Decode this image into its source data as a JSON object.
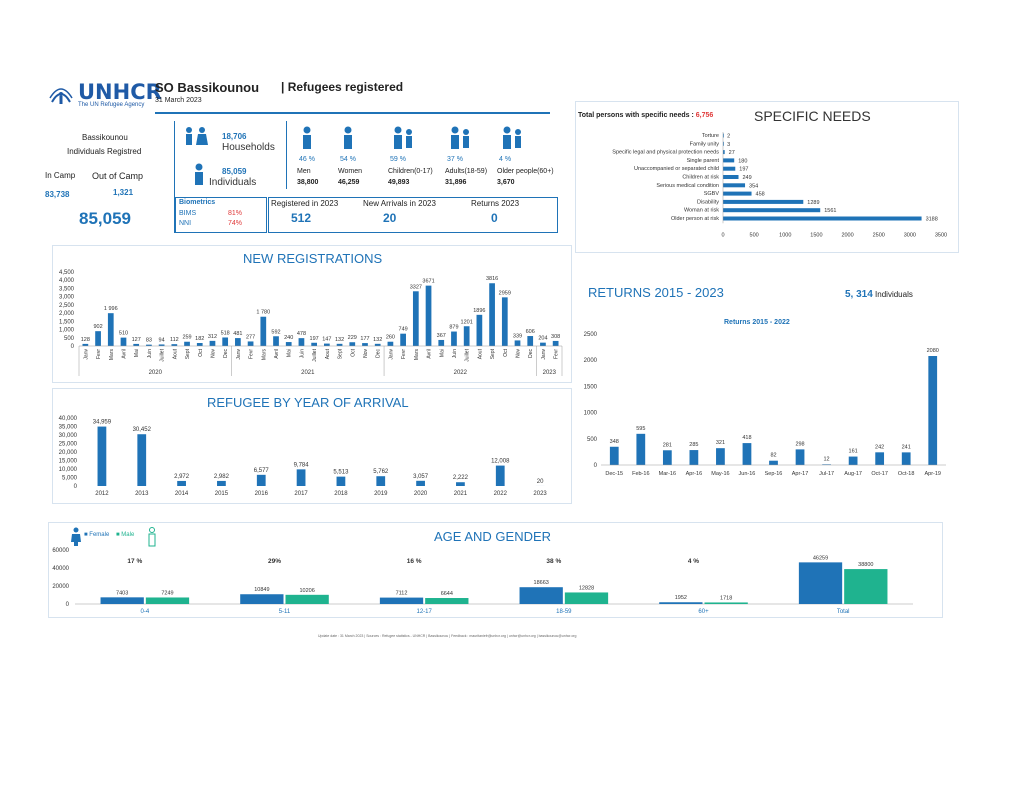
{
  "brand": {
    "name": "UNHCR",
    "tagline": "The UN Refugee Agency"
  },
  "header": {
    "title": "SO Bassikounou",
    "subtitle": "| Refugees registered",
    "date": "31 March 2023"
  },
  "summary": {
    "label1": "Bassikounou",
    "label2": "Individuals Registred",
    "in_camp_label": "In Camp",
    "out_camp_label": "Out of Camp",
    "in_camp_value": "83,738",
    "out_camp_value": "1,321",
    "total": "85,059",
    "households_value": "18,706",
    "households_label": "Households",
    "individuals_value": "85,059",
    "individuals_label": "Individuals"
  },
  "demographics": [
    {
      "pct": "46 %",
      "label": "Men",
      "value": "38,800"
    },
    {
      "pct": "54 %",
      "label": "Women",
      "value": "46,259"
    },
    {
      "pct": "59 %",
      "label": "Children(0-17)",
      "value": "49,893"
    },
    {
      "pct": "37 %",
      "label": "Adults(18-59)",
      "value": "31,896"
    },
    {
      "pct": "4 %",
      "label": "Older people(60+)",
      "value": "3,670"
    }
  ],
  "biometrics": {
    "title": "Biometrics",
    "rows": [
      {
        "label": "BIMS",
        "value": "81%"
      },
      {
        "label": "NNI",
        "value": "74%"
      }
    ]
  },
  "stats": [
    {
      "label": "Registered in 2023",
      "value": "512"
    },
    {
      "label": "New Arrivals in 2023",
      "value": "20"
    },
    {
      "label": "Returns 2023",
      "value": "0"
    }
  ],
  "specific_needs_header": {
    "label": "Total persons with specific needs :",
    "value": "6,756",
    "title": "SPECIFIC NEEDS"
  },
  "returns_header": {
    "title": "RETURNS 2015 - 2023",
    "value": "5, 314",
    "unit": "Individuals"
  },
  "age_gender_header": {
    "title": "AGE AND GENDER",
    "female": "Female",
    "male": "Male"
  },
  "footer": {
    "text": "Update date : 31 March 2023 | Sources : Refugee statistics - UNHCR | Bassikounou | Feedback : mauritaniefr@unhcr.org | unhcr@unhcr.org | bassikounou@unhcr.org"
  },
  "colors": {
    "blue": "#1f73b7",
    "teal": "#1fb38f",
    "red": "#e03a3a"
  },
  "chart_data": [
    {
      "type": "bar",
      "title": "NEW REGISTRATIONS",
      "categories": [
        "Janv",
        "Fevr",
        "Mars",
        "Avril",
        "Mai",
        "Juin",
        "Juillet",
        "Aout",
        "Sept",
        "Oct",
        "Nov",
        "Dec",
        "Janv",
        "Fevr",
        "Mars",
        "Avril",
        "Mai",
        "Juin",
        "Juillet",
        "Aout",
        "Sept",
        "Oct",
        "Nov",
        "Dec",
        "Janv",
        "Fevr",
        "Mars",
        "Avril",
        "Mai",
        "Juin",
        "Juillet",
        "Aout",
        "Sept",
        "Oct",
        "Nov",
        "Dec",
        "Janv",
        "Fevr"
      ],
      "groups": [
        {
          "label": "2020",
          "count": 12
        },
        {
          "label": "2021",
          "count": 12
        },
        {
          "label": "2022",
          "count": 12
        },
        {
          "label": "2023",
          "count": 2
        }
      ],
      "values": [
        128,
        902,
        1996,
        510,
        127,
        83,
        94,
        112,
        259,
        182,
        312,
        518,
        481,
        277,
        1780,
        592,
        240,
        478,
        197,
        147,
        132,
        229,
        177,
        132,
        260,
        749,
        3327,
        3671,
        367,
        879,
        1201,
        1896,
        3816,
        2959,
        339,
        606,
        204,
        308
      ],
      "labels": [
        "128",
        "902",
        "1 996",
        "510",
        "127",
        "83",
        "94",
        "112",
        "259",
        "182",
        "312",
        "518",
        "481",
        "277",
        "1 780",
        "592",
        "240",
        "478",
        "197",
        "147",
        "132",
        "229",
        "177",
        "132",
        "260",
        "749",
        "3327",
        "3671",
        "367",
        "879",
        "1201",
        "1896",
        "3816",
        "2959",
        "339",
        "606",
        "204",
        "308"
      ],
      "yticks": [
        "4,500",
        "4,000",
        "3,500",
        "3,000",
        "2,500",
        "2,000",
        "1,500",
        "1,000",
        "500",
        "0"
      ],
      "ylim": [
        0,
        4500
      ]
    },
    {
      "type": "bar",
      "title": "REFUGEE BY YEAR OF ARRIVAL",
      "categories": [
        "2012",
        "2013",
        "2014",
        "2015",
        "2016",
        "2017",
        "2018",
        "2019",
        "2020",
        "2021",
        "2022",
        "2023"
      ],
      "values": [
        34959,
        30452,
        2972,
        2982,
        6577,
        9784,
        5513,
        5762,
        3057,
        2222,
        12008,
        20
      ],
      "labels": [
        "34,959",
        "30,452",
        "2,972",
        "2,982",
        "6,577",
        "9,784",
        "5,513",
        "5,762",
        "3,057",
        "2,222",
        "12,008",
        "20"
      ],
      "yticks": [
        "40,000",
        "35,000",
        "30,000",
        "25,000",
        "20,000",
        "15,000",
        "10,000",
        "5,000",
        "0"
      ],
      "ylim": [
        0,
        40000
      ]
    },
    {
      "type": "bar",
      "orientation": "horizontal",
      "title": "SPECIFIC NEEDS",
      "categories": [
        "Torture",
        "Family unity",
        "Specific legal and physical protection needs",
        "Single parent",
        "Unaccompanied or separated child",
        "Children at risk",
        "Serious medical condition",
        "SGBV",
        "Disability",
        "Woman at risk",
        "Older person at risk"
      ],
      "values": [
        2,
        3,
        27,
        180,
        197,
        249,
        354,
        458,
        1289,
        1561,
        3188
      ],
      "xticks": [
        "0",
        "500",
        "1000",
        "1500",
        "2000",
        "2500",
        "3000",
        "3500"
      ],
      "xlim": [
        0,
        3500
      ]
    },
    {
      "type": "bar",
      "title": "Returns 2015 - 2022",
      "categories": [
        "Dec-15",
        "Feb-16",
        "Mar-16",
        "Apr-16",
        "May-16",
        "Jun-16",
        "Sep-16",
        "Apr-17",
        "Jul-17",
        "Aug-17",
        "Oct-17",
        "Oct-18",
        "Apr-19"
      ],
      "values": [
        348,
        595,
        281,
        285,
        321,
        418,
        82,
        298,
        12,
        161,
        242,
        241,
        2080
      ],
      "yticks": [
        "2500",
        "2000",
        "1500",
        "1000",
        "500",
        "0"
      ],
      "ylim": [
        0,
        2500
      ]
    },
    {
      "type": "bar",
      "title": "AGE AND GENDER",
      "categories": [
        "0-4",
        "5-11",
        "12-17",
        "18-59",
        "60+",
        "Total"
      ],
      "pcts": [
        "17 %",
        "29%",
        "16 %",
        "38 %",
        "4 %",
        ""
      ],
      "series": [
        {
          "name": "Female",
          "values": [
            7403,
            10849,
            7112,
            18663,
            1952,
            46259
          ]
        },
        {
          "name": "Male",
          "values": [
            7249,
            10206,
            6644,
            12828,
            1718,
            38800
          ]
        }
      ],
      "yticks": [
        "60000",
        "40000",
        "20000",
        "0"
      ],
      "ylim": [
        0,
        60000
      ]
    }
  ]
}
